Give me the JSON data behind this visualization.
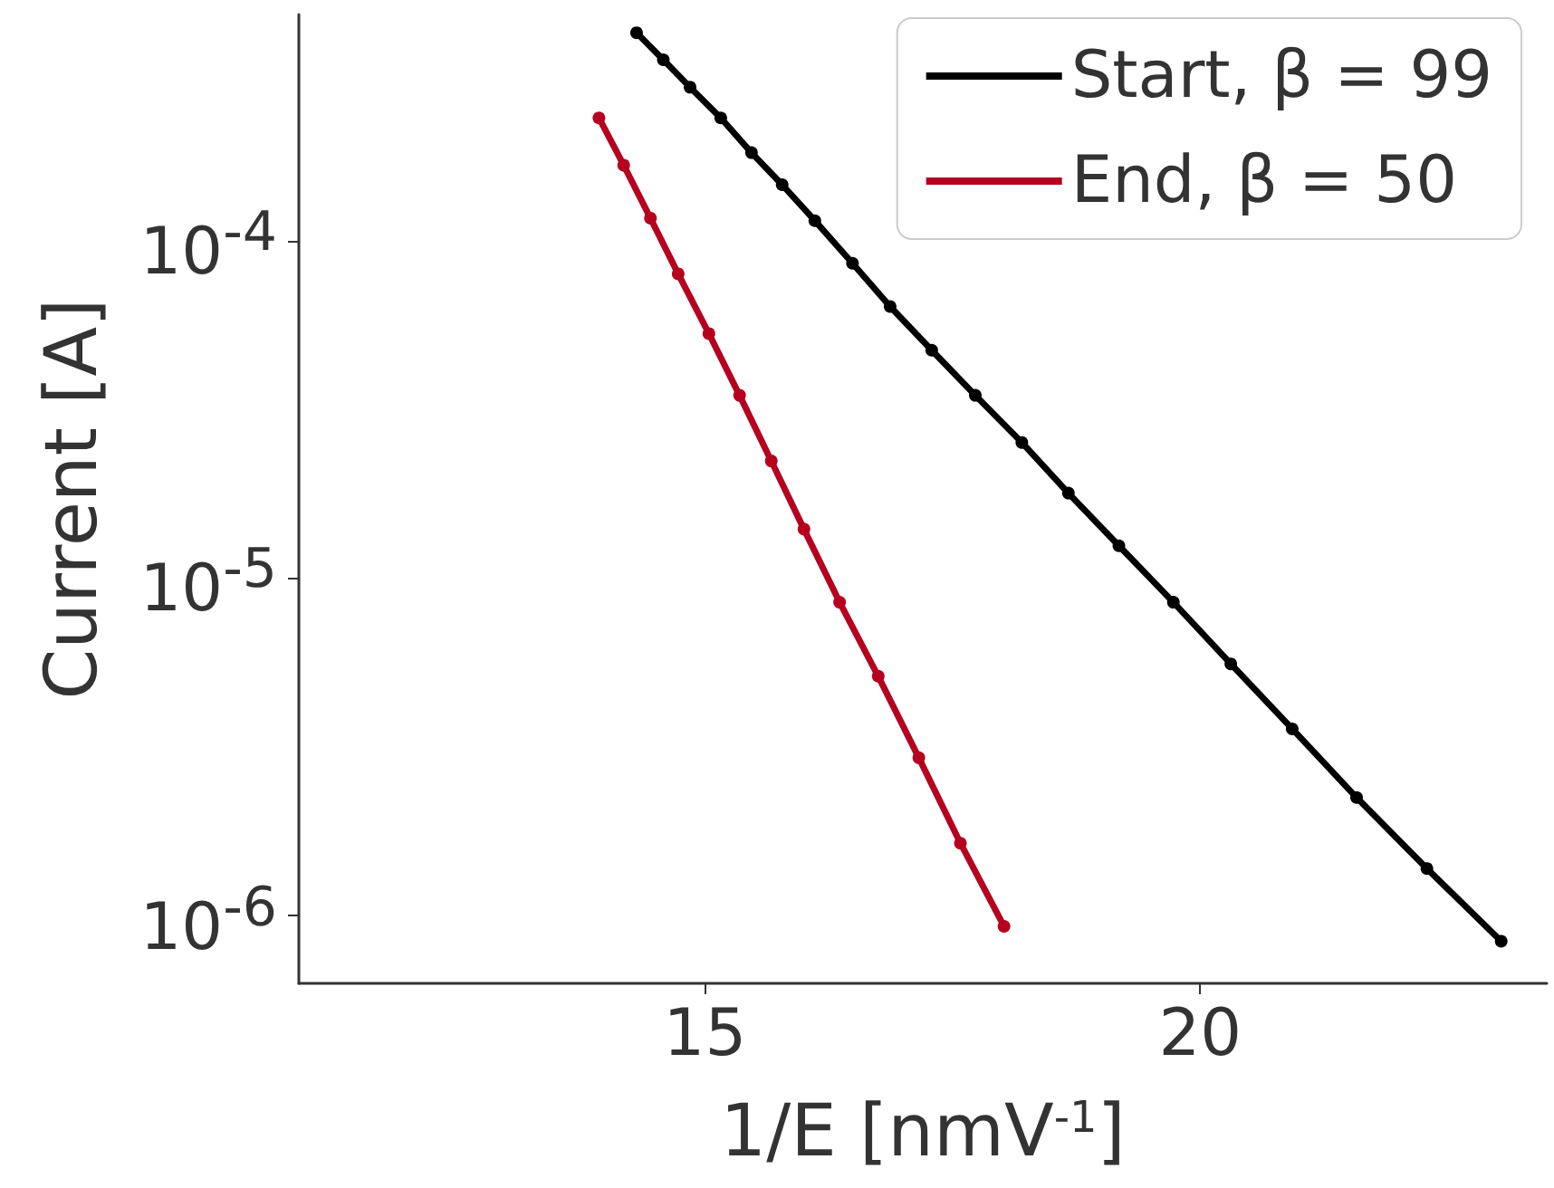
{
  "chart_data": {
    "type": "line",
    "xlabel": "1/E [nmV$^{-1}$]",
    "ylabel": "Current [A]",
    "log": "y",
    "xlim": [
      10.9,
      23.5
    ],
    "xticks": [
      15,
      20
    ],
    "ylim": [
      6.3e-07,
      0.00047
    ],
    "yticks": [
      {
        "value": 1e-06,
        "label": "10$^{-6}$"
      },
      {
        "value": 1e-05,
        "label": "10$^{-5}$"
      },
      {
        "value": 0.0001,
        "label": "10$^{-4}$"
      }
    ],
    "grid": false,
    "legend": "top right",
    "marker": "circle",
    "line_style": "solid",
    "series": [
      {
        "name": "Start, β = 99",
        "color": "#000000",
        "x": [
          14.31,
          14.58,
          14.85,
          15.16,
          15.47,
          15.78,
          16.11,
          16.49,
          16.87,
          17.29,
          17.73,
          18.2,
          18.67,
          19.18,
          19.73,
          20.31,
          20.93,
          21.58,
          22.29,
          23.04
        ],
        "values": [
          0.000415,
          0.000345,
          0.000286,
          0.000232,
          0.000183,
          0.000147,
          0.000115,
          8.6e-05,
          6.4e-05,
          4.75e-05,
          3.49e-05,
          2.53e-05,
          1.79e-05,
          1.25e-05,
          8.5e-06,
          5.58e-06,
          3.58e-06,
          2.24e-06,
          1.38e-06,
          8.4e-07
        ]
      },
      {
        "name": "End, β = 50",
        "color": "#b5001f",
        "x": [
          13.93,
          14.18,
          14.45,
          14.73,
          15.04,
          15.35,
          15.67,
          16.0,
          16.36,
          16.75,
          17.16,
          17.58,
          18.02
        ],
        "values": [
          0.000232,
          0.000168,
          0.000117,
          8e-05,
          5.32e-05,
          3.49e-05,
          2.23e-05,
          1.4e-05,
          8.5e-06,
          5.13e-06,
          2.94e-06,
          1.64e-06,
          9.3e-07
        ]
      }
    ]
  }
}
